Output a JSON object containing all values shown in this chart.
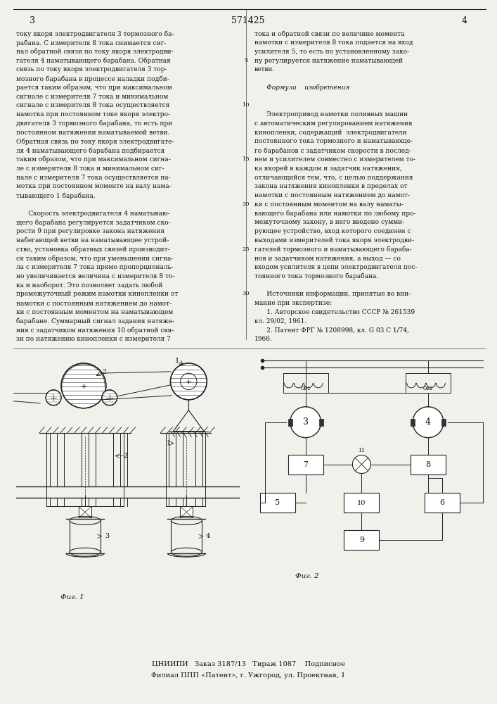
{
  "patent_number": "571425",
  "page_left": "3",
  "page_right": "4",
  "bg_color": "#f2f0eb",
  "text_color": "#111111",
  "line_color": "#222222",
  "left_column_text": [
    "току якоря электродвигателя 3 тормозного ба-",
    "рабана. С измерителя 8 тока снимается сиг-",
    "нал обратной связи по току якоря электродви-",
    "гателя 4 наматывающего барабана. Обратная",
    "связь по току якоря электродвигателя 3 тор-",
    "мозного барабана в процессе наладки подби-",
    "рается таким образом, что при максимальном",
    "сигнале с измерителя 7 тока и минимальном",
    "сигнале с измерителя 8 тока осуществляется",
    "намотка при постоянном токе якоря электро-",
    "двигателя 3 тормозного барабана, то есть при",
    "постоянном натяжении наматываемой ветви.",
    "Обратная связь по току якоря электродвигате-",
    "ля 4 наматывающего барабана подбирается",
    "таким образом, что при максимальном сигна-",
    "ле с измерителя 8 тока и минимальном сиг-",
    "нале с измерителя 7 тока осуществляется на-",
    "мотка при постоянном моменте на валу нама-",
    "тывающего 1 барабана.",
    "",
    "      Скорость электродвигателя 4 наматываю-",
    "щего барабана регулируется задатчиком ско-",
    "рости 9 при регулировке закона натяжения",
    "набегающей ветви на наматывающее устрой-",
    "ство, установка обратных связей производит-",
    "ся таким образом, что при уменьшении сигна-",
    "ла с измерителя 7 тока прямо пропорциональ-",
    "но увеличивается величина с измерителя 8 то-",
    "ка и наоборот. Это позволяет задать любой",
    "промежуточный режим намотки кинопленки от",
    "намотки с постоянным натяжением до намот-",
    "ки с постоянным моментом на наматывающем",
    "барабане. Суммарный сигнал задания натяже-",
    "ния с задатчиком натяжения 10 обратной свя-",
    "зи по натяжению кинопленки с измерителя 7"
  ],
  "right_column_text": [
    "тока и обратной связи по величине момента",
    "намотки с измерителя 8 тока подается на вход",
    "усилителя 5, то есть по установленному зако-",
    "ну регулируется натяжение наматывающей",
    "ветви.",
    "",
    "      Формула    изобретения",
    "",
    "",
    "      Электропривод намотки поливных машин",
    "с автоматическим регулированием натяжения",
    "кинопленки, содержащий  электродвигатели",
    "постоянного тока тормозного и наматывающе-",
    "го барабанов с задатчиком скорости в послед-",
    "нем и усилителем совместно с измерителем то-",
    "ка якорей в каждом и задатчик натяжения,",
    "отличающийся тем, что, с целью поддержания",
    "закона натяжения кинопленки в пределах от",
    "намотки с постоянным натяжением до намот-",
    "ки с постоянным моментом на валу наматы-",
    "вающего барабана или намотки по любому про-",
    "межуточному закону, в него введено сумми-",
    "рующее устройство, вход которого соединен с",
    "выходами измерителей тока якоря электродви-",
    "гателей тормозного и наматывающего бараба-",
    "нов и задатчиком натяжения, а выход — со",
    "входом усилителя в цепи электродвигателя пос-",
    "тоянного тока тормозного барабана.",
    "",
    "      Источники информации, принятые во вни-",
    "мание при экспертизе:",
    "      1. Авторское свидетельство СССР № 261539",
    "кл. 29/02, 1961.",
    "      2. Патент ФРГ № 1208998, кл. G 03 C 1/74,",
    "1966."
  ],
  "footer_line1": "ЦНИИПИ   Заказ 3187/13   Тираж 1087    Подписное",
  "footer_line2": "Филиал ППП «Патент», г. Ужгород, ул. Проектная, 1"
}
